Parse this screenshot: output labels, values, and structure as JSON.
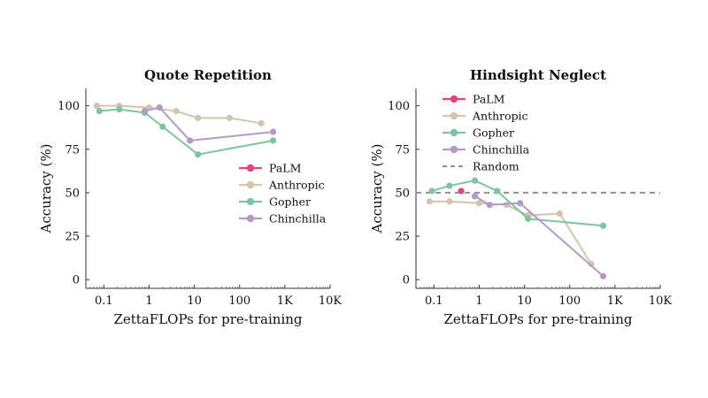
{
  "chart_data": [
    {
      "type": "line",
      "title": "Quote Repetition",
      "xlabel": "ZettaFLOPs for pre-training",
      "ylabel": "Accuracy (%)",
      "xscale": "log",
      "xlim": [
        0.04,
        10000
      ],
      "ylim": [
        -5,
        110
      ],
      "xticks": [
        0.1,
        1,
        10,
        100,
        1000,
        10000
      ],
      "xtick_labels": [
        "0.1",
        "1",
        "10",
        "100",
        "1K",
        "10K"
      ],
      "yticks": [
        0,
        25,
        50,
        75,
        100
      ],
      "ytick_labels": [
        "0",
        "25",
        "50",
        "75",
        "100"
      ],
      "legend_position": "right",
      "series": [
        {
          "name": "PaLM",
          "color": "#e0457b",
          "x": [],
          "y": []
        },
        {
          "name": "Anthropic",
          "color": "#d3c4b0",
          "x": [
            0.07,
            0.22,
            1.0,
            4.0,
            12.0,
            60.0,
            300.0
          ],
          "y": [
            100,
            100,
            99,
            97,
            93,
            93,
            90
          ]
        },
        {
          "name": "Gopher",
          "color": "#7fc4a1",
          "x": [
            0.08,
            0.22,
            0.8,
            2.0,
            12.0,
            550.0
          ],
          "y": [
            97,
            98,
            96,
            88,
            72,
            80
          ]
        },
        {
          "name": "Chinchilla",
          "color": "#b39bc6",
          "x": [
            0.8,
            1.7,
            8.0,
            550.0
          ],
          "y": [
            97,
            99,
            80,
            85
          ]
        }
      ]
    },
    {
      "type": "line",
      "title": "Hindsight Neglect",
      "xlabel": "ZettaFLOPs for pre-training",
      "ylabel": "Accuracy (%)",
      "xscale": "log",
      "xlim": [
        0.04,
        10000
      ],
      "ylim": [
        -5,
        110
      ],
      "xticks": [
        0.1,
        1,
        10,
        100,
        1000,
        10000
      ],
      "xtick_labels": [
        "0.1",
        "1",
        "10",
        "100",
        "1K",
        "10K"
      ],
      "yticks": [
        0,
        25,
        50,
        75,
        100
      ],
      "ytick_labels": [
        "0",
        "25",
        "50",
        "75",
        "100"
      ],
      "legend_position": "top-left",
      "reference_lines": [
        {
          "name": "Random",
          "y": 50,
          "color": "#888fa0",
          "style": "dashed"
        }
      ],
      "series": [
        {
          "name": "PaLM",
          "color": "#e0457b",
          "x": [
            0.4
          ],
          "y": [
            51
          ]
        },
        {
          "name": "Anthropic",
          "color": "#d3c4b0",
          "x": [
            0.08,
            0.22,
            1.0,
            4.0,
            12.0,
            60.0,
            300.0
          ],
          "y": [
            45,
            45,
            44,
            43,
            37,
            38,
            9
          ]
        },
        {
          "name": "Gopher",
          "color": "#7fc4a1",
          "x": [
            0.09,
            0.22,
            0.8,
            2.5,
            12.0,
            550.0
          ],
          "y": [
            51,
            54,
            57,
            51,
            35,
            31
          ]
        },
        {
          "name": "Chinchilla",
          "color": "#b39bc6",
          "x": [
            0.8,
            1.7,
            8.0,
            550.0
          ],
          "y": [
            48,
            43,
            44,
            2
          ]
        }
      ]
    }
  ]
}
